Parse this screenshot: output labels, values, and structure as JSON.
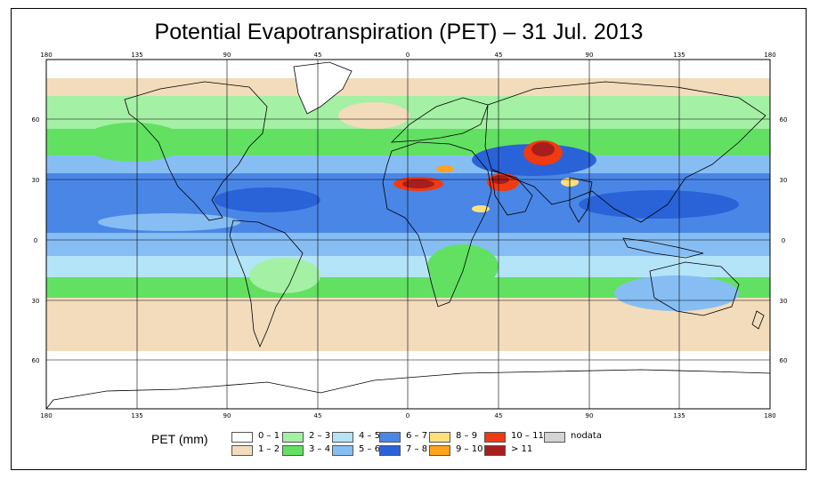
{
  "title": "Potential Evapotranspiration (PET) – 31 Jul. 2013",
  "axes": {
    "longitude_ticks": [
      "180",
      "135",
      "90",
      "45",
      "0",
      "45",
      "90",
      "135",
      "180"
    ],
    "latitude_ticks": [
      "60",
      "30",
      "0",
      "30",
      "60"
    ]
  },
  "legend": {
    "title": "PET (mm)",
    "items": [
      {
        "label": "0 – 1",
        "color": "#ffffff"
      },
      {
        "label": "1 – 2",
        "color": "#f2dcbc"
      },
      {
        "label": "2 – 3",
        "color": "#a4f0a4"
      },
      {
        "label": "3 – 4",
        "color": "#62e062"
      },
      {
        "label": "4 – 5",
        "color": "#b4e4f8"
      },
      {
        "label": "5 – 6",
        "color": "#86bef4"
      },
      {
        "label": "6 – 7",
        "color": "#4a86e6"
      },
      {
        "label": "7 – 8",
        "color": "#2a62d8"
      },
      {
        "label": "8 – 9",
        "color": "#ffe07a"
      },
      {
        "label": "9 – 10",
        "color": "#ffa21e"
      },
      {
        "label": "10 – 11",
        "color": "#f03a12"
      },
      {
        "label": "> 11",
        "color": "#a81e1e"
      },
      {
        "label": "nodata",
        "color": "#d4d4d4"
      }
    ]
  }
}
